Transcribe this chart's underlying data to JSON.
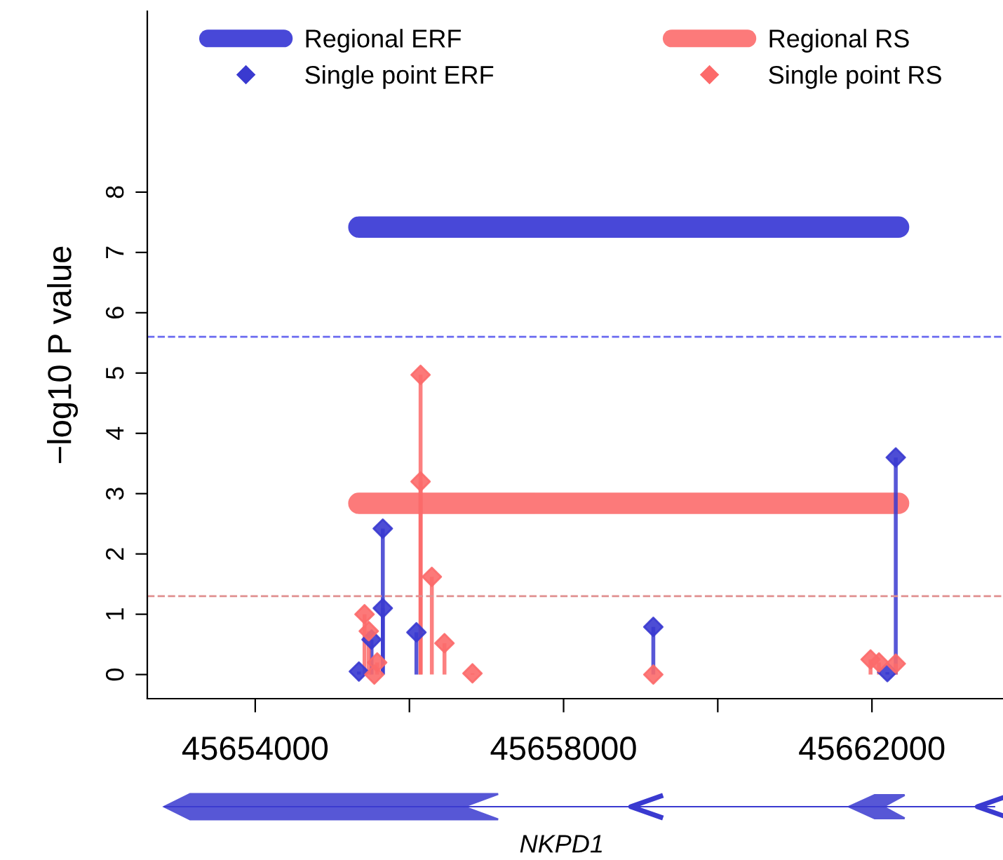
{
  "chart_data": {
    "type": "lollipop",
    "ylabel": "−log10 P value",
    "xlim": [
      45652600,
      45663700
    ],
    "ylim": [
      -0.4,
      11
    ],
    "xticks": [
      45654000,
      {
        "value": 45656000,
        "label": null
      },
      45658000,
      {
        "value": 45660000,
        "label": null
      },
      45662000
    ],
    "yticks": [
      0,
      1,
      2,
      3,
      4,
      5,
      6,
      7,
      8
    ],
    "grid": false,
    "legend": "top",
    "series": [
      {
        "name": "Regional ERF",
        "type": "line",
        "color": "#4848d8",
        "x": [
          45655345,
          45662345
        ],
        "values": [
          7.42,
          7.42
        ]
      },
      {
        "name": "Regional RS",
        "type": "line",
        "color": "#fc7a7a",
        "x": [
          45655345,
          45662345
        ],
        "values": [
          2.84,
          2.84
        ]
      },
      {
        "name": "Single point ERF",
        "marker": "diamond",
        "color": "#3a3ad0",
        "x": [
          45655345,
          45655509,
          45655655,
          45655655,
          45656091,
          45659164,
          45662200,
          45662309
        ],
        "values": [
          0.05,
          0.58,
          1.1,
          2.42,
          0.7,
          0.79,
          0.04,
          3.6
        ]
      },
      {
        "name": "Single point RS",
        "marker": "diamond",
        "color": "#fc6a6a",
        "x": [
          45655418,
          45655473,
          45655582,
          45655545,
          45656145,
          45656145,
          45656291,
          45656455,
          45656818,
          45659164,
          45661982,
          45662091,
          45662309
        ],
        "values": [
          1.0,
          0.72,
          0.2,
          0.0,
          3.2,
          4.97,
          1.62,
          0.52,
          0.02,
          0.0,
          0.25,
          0.2,
          0.18
        ]
      }
    ],
    "ref_lines": [
      {
        "axis": "y",
        "value": 5.6,
        "color": "#6a6af0",
        "line_style": "dashed"
      },
      {
        "axis": "y",
        "value": 1.3,
        "color": "#e09090",
        "line_style": "dashed"
      }
    ],
    "annotations": [
      "NKPD1"
    ]
  }
}
